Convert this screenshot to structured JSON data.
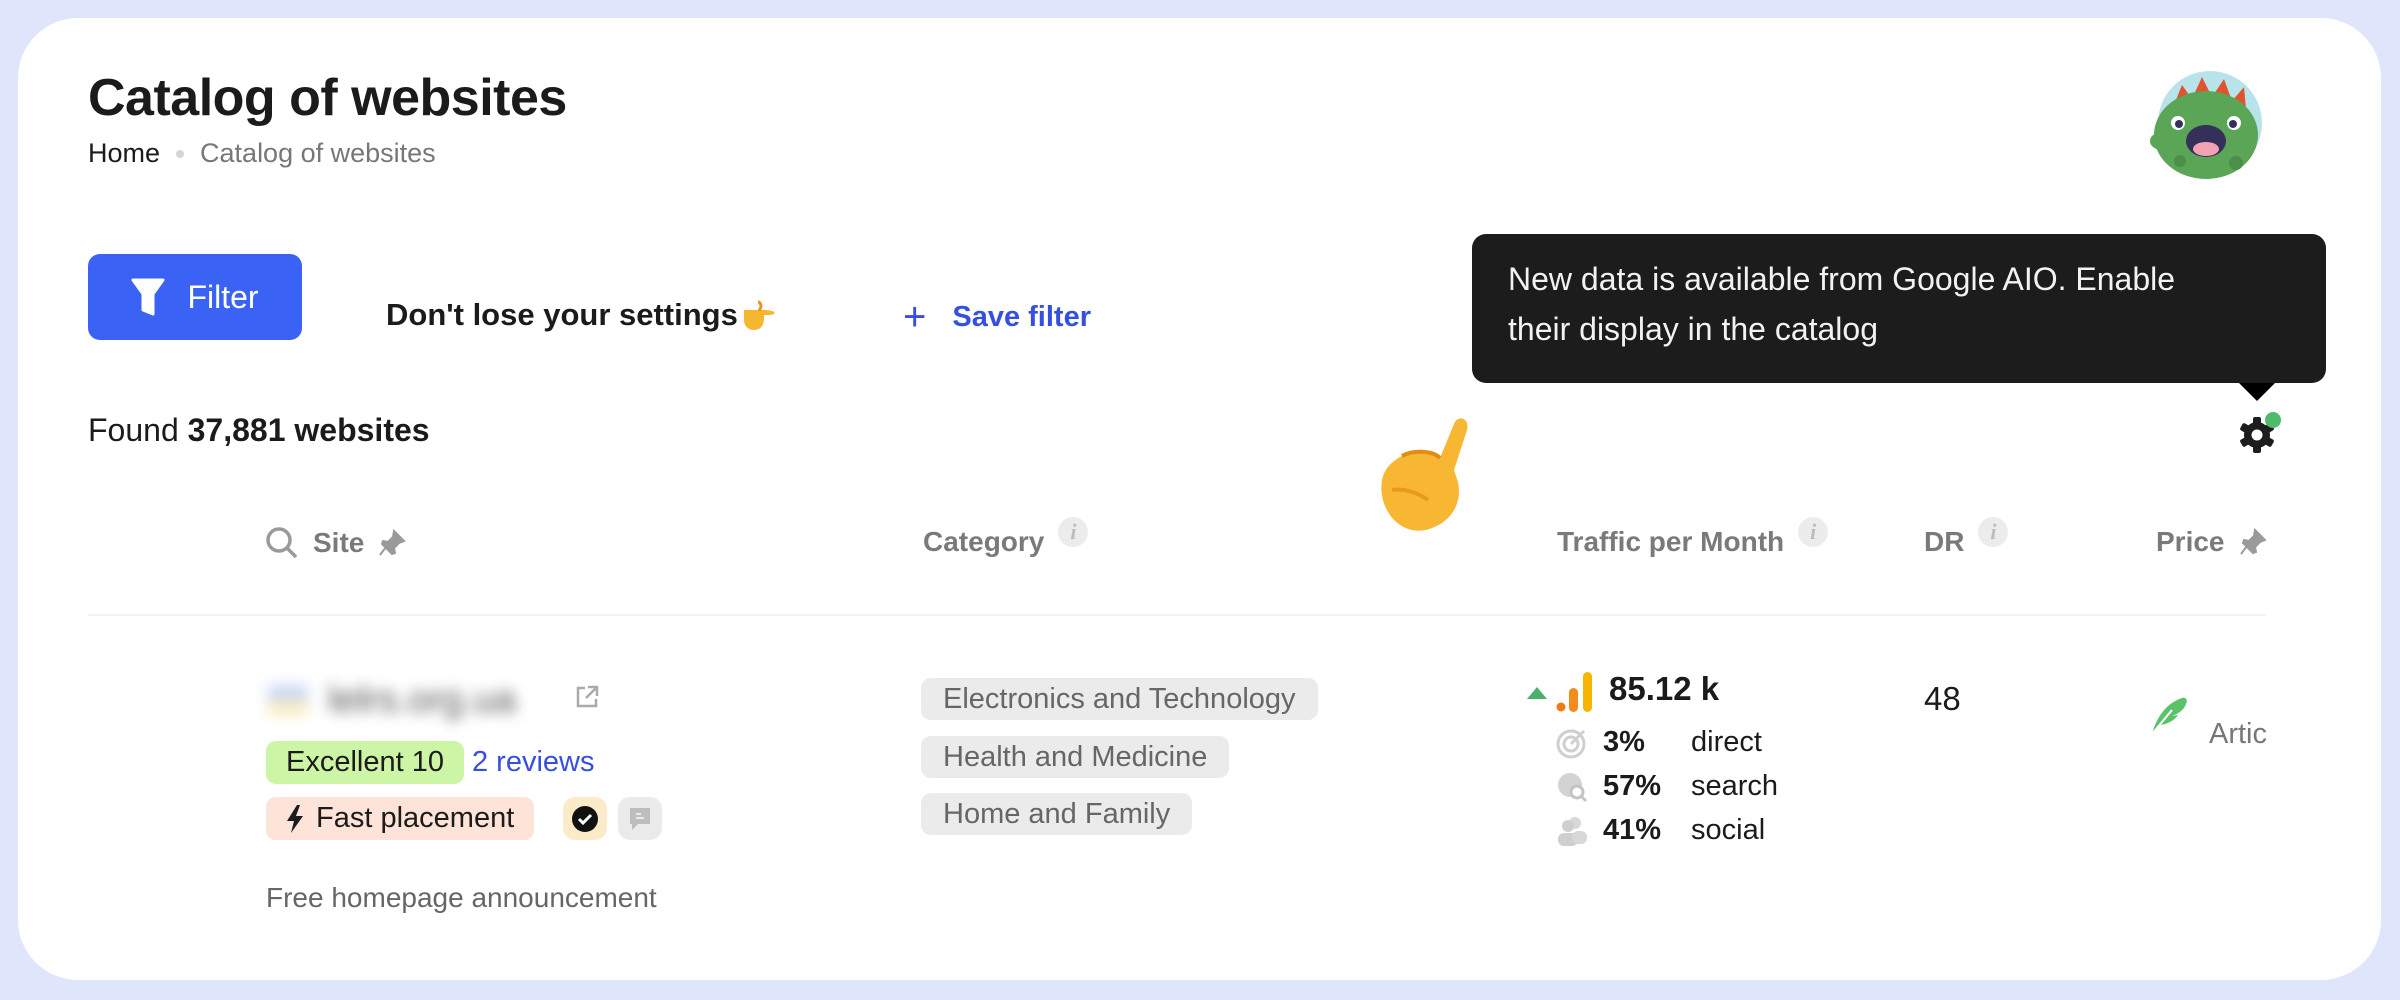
{
  "page": {
    "title": "Catalog of websites"
  },
  "breadcrumb": [
    {
      "label": "Home"
    },
    {
      "label": "Catalog of websites"
    }
  ],
  "toolbar": {
    "filter_label": "Filter",
    "hint_text": "Don't lose your settings👉",
    "hint_label": "Don't lose your settings",
    "save_filter_label": "Save filter"
  },
  "tooltip": {
    "line1": "New data is available from Google AIO. Enable",
    "line2": "their display in the catalog"
  },
  "results": {
    "prefix": "Found",
    "count": "37,881 websites"
  },
  "table": {
    "headers": {
      "site": "Site",
      "category": "Category",
      "traffic": "Traffic per Month",
      "dr": "DR",
      "price": "Price",
      "info": "i"
    },
    "rows": [
      {
        "site": "lelrs.org.ua",
        "rating_badge": "Excellent 10",
        "reviews": "2 reviews",
        "placement_badge": "Fast placement",
        "note": "Free homepage announcement",
        "categories": [
          "Electronics and Technology",
          "Health and Medicine",
          "Home and Family"
        ],
        "traffic": "85.12 k",
        "traffic_trend": "up",
        "sources": [
          {
            "pct": "3%",
            "label": "direct",
            "icon": "target-icon"
          },
          {
            "pct": "57%",
            "label": "search",
            "icon": "globe-search-icon"
          },
          {
            "pct": "41%",
            "label": "social",
            "icon": "users-icon"
          }
        ],
        "dr": "48",
        "price": "Artic"
      }
    ]
  },
  "colors": {
    "accent": "#3a63f5",
    "link": "#3550e0",
    "rating_bg": "#cdf5a6",
    "placement_bg": "#fde3d8",
    "notification_dot": "#4dbb6a",
    "trend_up": "#4caf6e"
  }
}
